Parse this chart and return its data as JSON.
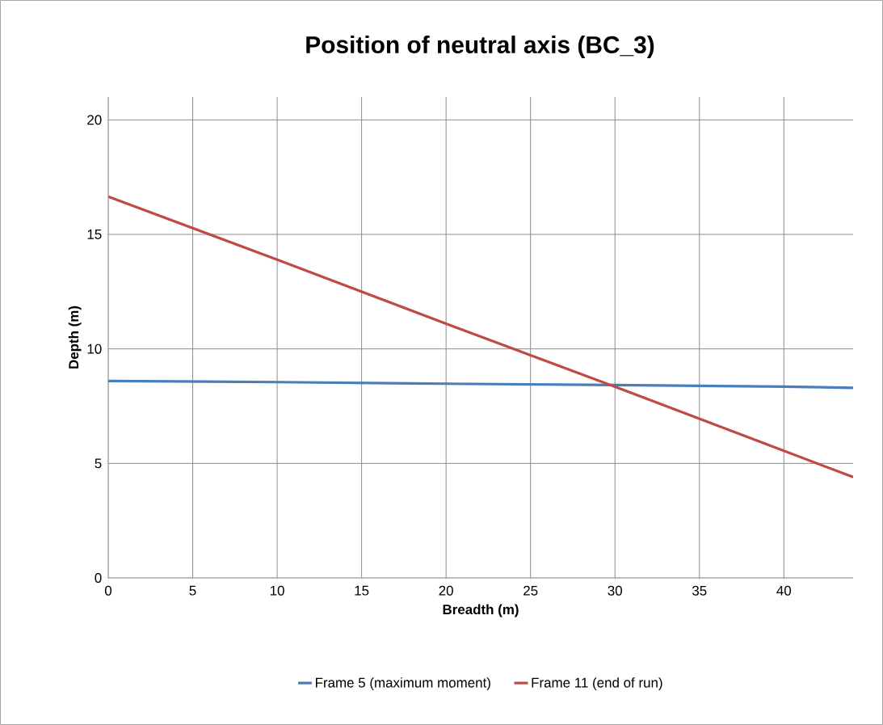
{
  "chart_data": {
    "type": "line",
    "title": "Position of neutral axis (BC_3)",
    "xlabel": "Breadth (m)",
    "ylabel": "Depth (m)",
    "xlim": [
      0,
      44.1
    ],
    "ylim": [
      0,
      21
    ],
    "xticks": [
      0,
      5,
      10,
      15,
      20,
      25,
      30,
      35,
      40
    ],
    "yticks": [
      0,
      5,
      10,
      15,
      20
    ],
    "grid": true,
    "legend": "bottom",
    "line_style": "solid",
    "marker": "none",
    "x": [
      0,
      10,
      20,
      30,
      40,
      44.1
    ],
    "series": [
      {
        "name": "Frame 5 (maximum moment)",
        "color": "#4a7ebb",
        "values": [
          8.6,
          8.55,
          8.48,
          8.42,
          8.35,
          8.3
        ]
      },
      {
        "name": "Frame 11 (end of run)",
        "color": "#be4b48",
        "values": [
          16.65,
          13.9,
          11.1,
          8.35,
          5.55,
          4.4
        ]
      }
    ]
  }
}
